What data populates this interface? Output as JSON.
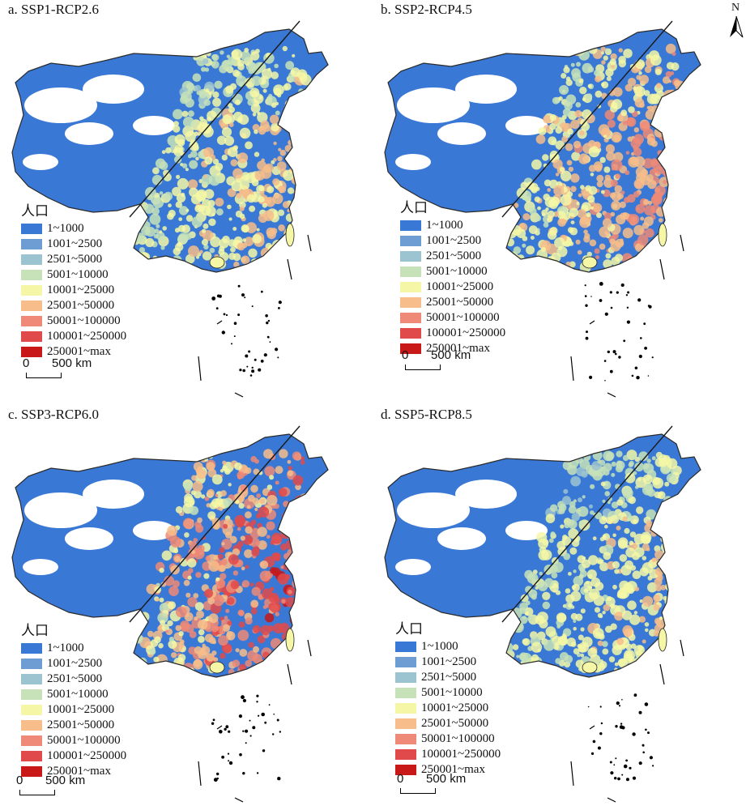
{
  "panels": [
    {
      "id": "a",
      "title": "a. SSP1-RCP2.6",
      "density": 0.45
    },
    {
      "id": "b",
      "title": "b. SSP2-RCP4.5",
      "density": 0.62
    },
    {
      "id": "c",
      "title": "c. SSP3-RCP6.0",
      "density": 0.85
    },
    {
      "id": "d",
      "title": "d. SSP5-RCP8.5",
      "density": 0.38
    }
  ],
  "legend": {
    "title": "人口",
    "items": [
      {
        "label": "1~1000",
        "color": "#3a78d6"
      },
      {
        "label": "1001~2500",
        "color": "#6d9dd3"
      },
      {
        "label": "2501~5000",
        "color": "#9cc3d0"
      },
      {
        "label": "5001~10000",
        "color": "#c7e2b9"
      },
      {
        "label": "10001~25000",
        "color": "#f5f7a6"
      },
      {
        "label": "25001~50000",
        "color": "#f7bd8a"
      },
      {
        "label": "50001~100000",
        "color": "#ee8a77"
      },
      {
        "label": "100001~250000",
        "color": "#e04a4a"
      },
      {
        "label": "250001~max",
        "color": "#c81818"
      }
    ]
  },
  "scale_bar": {
    "zero": "0",
    "distance": "500 km"
  },
  "north_arrow": {
    "label": "N",
    "icon": "north-arrow-icon"
  },
  "colors": {
    "background": "#ffffff",
    "boundary": "#2a2a2a",
    "no_data": "#ffffff"
  }
}
